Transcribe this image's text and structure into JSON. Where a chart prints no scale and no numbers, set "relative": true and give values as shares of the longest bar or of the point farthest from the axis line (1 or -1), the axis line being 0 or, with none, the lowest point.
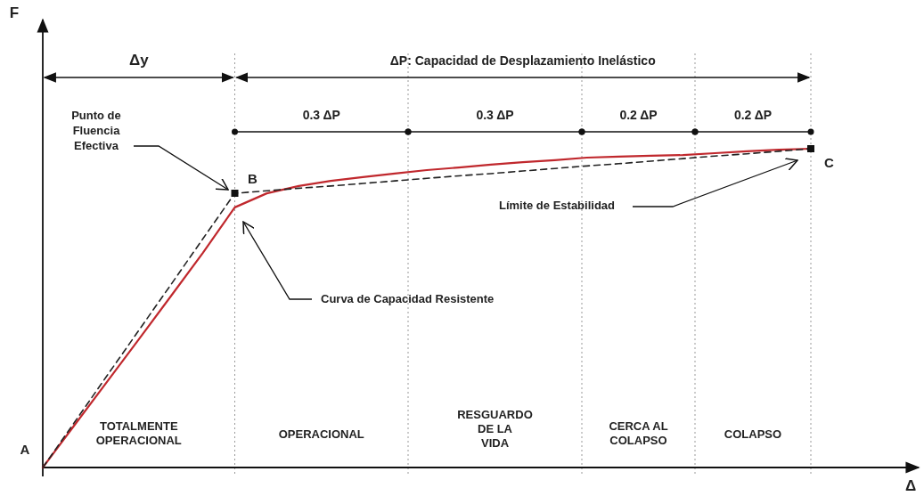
{
  "chart_data": {
    "type": "line",
    "relative": true,
    "categories": [
      null,
      null,
      null,
      null,
      null,
      null,
      null,
      null,
      null,
      null,
      null,
      null,
      null,
      null,
      null,
      null,
      null,
      null,
      null,
      null,
      null,
      null,
      null,
      null,
      null
    ],
    "series": [
      {
        "color": "#c0282d",
        "line_style": "solid",
        "values": [
          0,
          0.134,
          0.268,
          0.402,
          0.537,
          0.673,
          0.816,
          0.86,
          0.883,
          0.899,
          0.911,
          0.922,
          0.933,
          0.941,
          0.95,
          0.958,
          0.964,
          0.972,
          0.975,
          0.978,
          0.98,
          0.986,
          0.992,
          0.997,
          1
        ]
      },
      {
        "color": "#222222",
        "line_style": "dashed",
        "values": [
          0,
          0.143,
          0.287,
          0.43,
          0.573,
          0.717,
          0.86,
          0.868,
          0.876,
          0.883,
          0.891,
          0.899,
          0.907,
          0.915,
          0.922,
          0.93,
          0.938,
          0.946,
          0.953,
          0.961,
          0.969,
          0.977,
          0.984,
          0.992,
          1
        ]
      }
    ],
    "annotations": [
      "Δy",
      "ΔP: Capacidad de Desplazamiento Inelástico",
      "0.3 ΔP",
      "0.3 ΔP",
      "0.2 ΔP",
      "0.2 ΔP",
      "TOTALMENTE\nOPERACIONAL",
      "OPERACIONAL",
      "RESGUARDO\nDE LA\nVIDA",
      "CERCA AL\nCOLAPSO",
      "COLAPSO",
      "A",
      "B",
      "C",
      "Punto de\nFluencia\nEfectiva",
      "Límite de Estabilidad",
      "Curva de Capacidad Resistente",
      "F",
      "Δ"
    ]
  }
}
